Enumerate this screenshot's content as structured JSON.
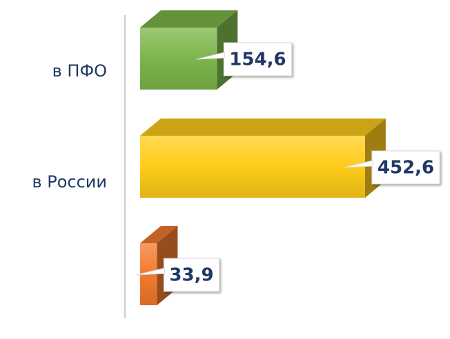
{
  "chart_data": {
    "type": "bar",
    "orientation": "horizontal",
    "categories": [
      "в ПФО",
      "в России",
      null
    ],
    "values": [
      154.6,
      452.6,
      33.9
    ],
    "value_labels": [
      "154,6",
      "452,6",
      "33,9"
    ],
    "colors": [
      "#7cb64a",
      "#ffcc1a",
      "#f27a2e"
    ]
  }
}
